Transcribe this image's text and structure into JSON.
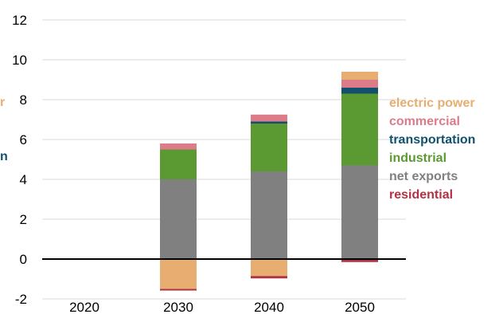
{
  "chart_data": {
    "type": "bar",
    "stacked": true,
    "categories": [
      "2020",
      "2030",
      "2040",
      "2050"
    ],
    "ylim": [
      -2,
      12
    ],
    "yticks": [
      "-2",
      "0",
      "2",
      "4",
      "6",
      "8",
      "10",
      "12"
    ],
    "grid": true,
    "legend_position": "right",
    "series": [
      {
        "name": "net exports",
        "color": "#808080",
        "values": [
          0,
          4.0,
          4.4,
          4.7
        ]
      },
      {
        "name": "industrial",
        "color": "#5b9a32",
        "values": [
          0,
          1.5,
          2.4,
          3.6
        ]
      },
      {
        "name": "transportation",
        "color": "#12506c",
        "values": [
          0,
          0.0,
          0.1,
          0.3
        ]
      },
      {
        "name": "commercial",
        "color": "#dc7c8b",
        "values": [
          0,
          0.3,
          0.35,
          0.4
        ]
      },
      {
        "name": "electric power",
        "color": "#e8ad71",
        "values": [
          0,
          -1.5,
          -0.85,
          0.4
        ]
      },
      {
        "name": "residential",
        "color": "#b23244",
        "values": [
          0,
          -0.08,
          -0.12,
          -0.15
        ]
      }
    ],
    "legend_order": [
      "electric power",
      "commercial",
      "transportation",
      "industrial",
      "net exports",
      "residential"
    ]
  },
  "clipped_labels": {
    "left_label_1": {
      "text": "r",
      "color": "#e8ad71"
    },
    "left_label_2": {
      "text": "n",
      "color": "#12506c"
    }
  }
}
